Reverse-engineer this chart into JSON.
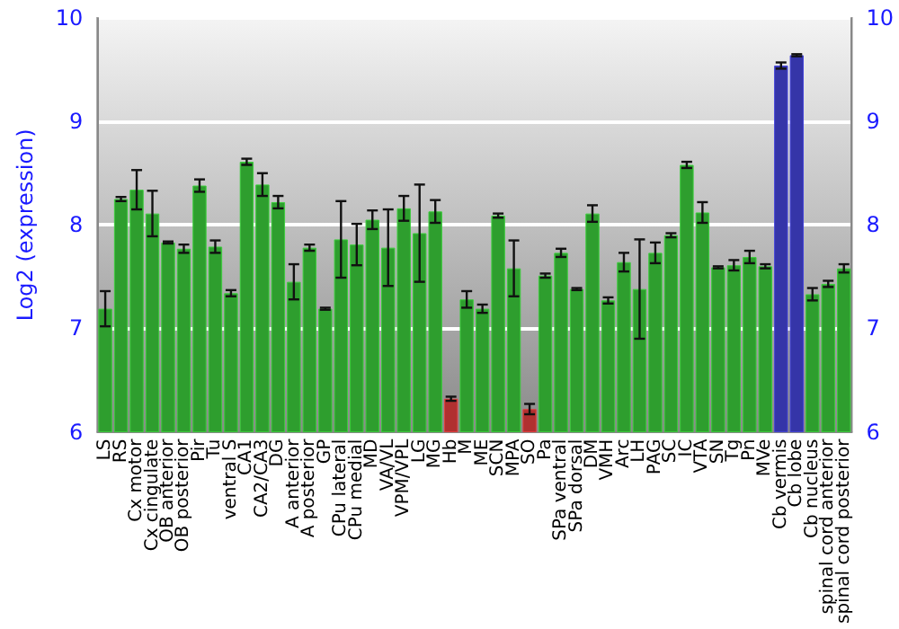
{
  "chart_data": {
    "type": "bar",
    "ylabel": "Log2 (expression)",
    "categories": [
      "LS",
      "RS",
      "Cx motor",
      "Cx cingulate",
      "OB anterior",
      "OB posterior",
      "Pir",
      "Tu",
      "ventral S",
      "CA1",
      "CA2/CA3",
      "DG",
      "A anterior",
      "A posterior",
      "GP",
      "CPu lateral",
      "CPu medial",
      "MD",
      "VA/VL",
      "VPM/VPL",
      "LG",
      "MG",
      "Hb",
      "M",
      "ME",
      "SCN",
      "MPA",
      "SO",
      "Pa",
      "SPa ventral",
      "SPa dorsal",
      "DM",
      "VMH",
      "Arc",
      "LH",
      "PAG",
      "SC",
      "IC",
      "VTA",
      "SN",
      "Tg",
      "Pn",
      "MVe",
      "Cb vermis",
      "Cb lobe",
      "Cb nucleus",
      "spinal cord anterior",
      "spinal cord posterior"
    ],
    "values": [
      7.19,
      8.25,
      8.34,
      8.11,
      7.83,
      7.77,
      8.38,
      7.79,
      7.34,
      8.61,
      8.39,
      8.22,
      7.45,
      7.78,
      7.19,
      7.86,
      7.81,
      8.05,
      7.78,
      8.16,
      7.92,
      8.13,
      6.32,
      7.28,
      7.19,
      8.09,
      7.58,
      6.22,
      7.51,
      7.73,
      7.38,
      8.11,
      7.27,
      7.64,
      7.38,
      7.73,
      7.9,
      8.58,
      8.12,
      7.59,
      7.61,
      7.69,
      7.6,
      9.54,
      9.64,
      7.33,
      7.43,
      7.58
    ],
    "errors": [
      0.17,
      0.02,
      0.19,
      0.22,
      0.01,
      0.04,
      0.06,
      0.06,
      0.03,
      0.03,
      0.11,
      0.06,
      0.17,
      0.03,
      0.01,
      0.37,
      0.2,
      0.09,
      0.37,
      0.12,
      0.47,
      0.11,
      0.02,
      0.08,
      0.04,
      0.02,
      0.27,
      0.05,
      0.02,
      0.04,
      0.01,
      0.08,
      0.03,
      0.09,
      0.48,
      0.1,
      0.02,
      0.03,
      0.1,
      0.01,
      0.05,
      0.06,
      0.02,
      0.03,
      0.01,
      0.06,
      0.03,
      0.04
    ],
    "colors": [
      "#2e9e2e",
      "#2e9e2e",
      "#2e9e2e",
      "#2e9e2e",
      "#2e9e2e",
      "#2e9e2e",
      "#2e9e2e",
      "#2e9e2e",
      "#2e9e2e",
      "#2e9e2e",
      "#2e9e2e",
      "#2e9e2e",
      "#2e9e2e",
      "#2e9e2e",
      "#2e9e2e",
      "#2e9e2e",
      "#2e9e2e",
      "#2e9e2e",
      "#2e9e2e",
      "#2e9e2e",
      "#2e9e2e",
      "#2e9e2e",
      "#b03030",
      "#2e9e2e",
      "#2e9e2e",
      "#2e9e2e",
      "#2e9e2e",
      "#b03030",
      "#2e9e2e",
      "#2e9e2e",
      "#2e9e2e",
      "#2e9e2e",
      "#2e9e2e",
      "#2e9e2e",
      "#2e9e2e",
      "#2e9e2e",
      "#2e9e2e",
      "#2e9e2e",
      "#2e9e2e",
      "#2e9e2e",
      "#2e9e2e",
      "#2e9e2e",
      "#2e9e2e",
      "#3535a8",
      "#3535a8",
      "#2e9e2e",
      "#2e9e2e",
      "#2e9e2e"
    ],
    "ylim": [
      6,
      10
    ],
    "yticks": [
      6,
      7,
      8,
      9,
      10
    ],
    "y2lim": [
      6,
      10
    ],
    "y2ticks": [
      6,
      7,
      8,
      9,
      10
    ],
    "grid": "y"
  }
}
